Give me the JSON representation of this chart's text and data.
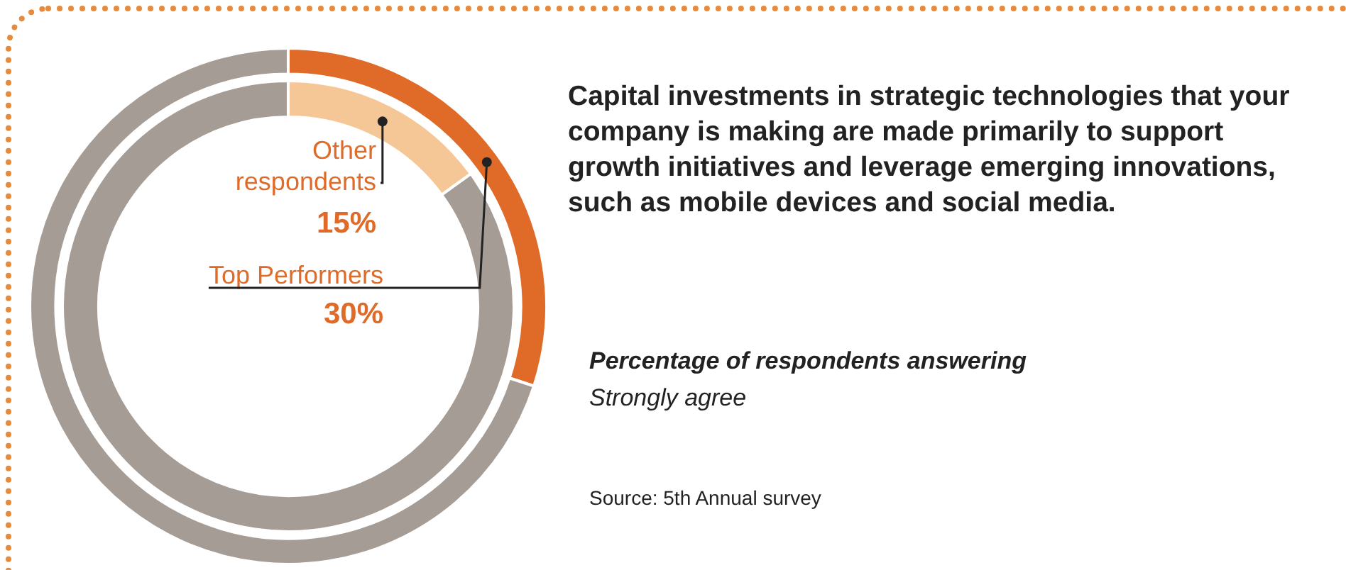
{
  "chart_data": [
    {
      "type": "donut",
      "title": "Capital investments in strategic technologies that your company is making are made primarily to support growth initiatives and leverage emerging innovations, such as mobile devices and social media.",
      "subtitle": "Percentage of respondents answering",
      "categories": [
        "Top Performers",
        null
      ],
      "values": [
        30,
        70
      ],
      "colors": [
        "#e06a27",
        "#a59d95"
      ],
      "value_labels": [
        "30%",
        null
      ],
      "annotations": [
        "Strongly agree",
        "Source: 5th Annual survey"
      ]
    },
    {
      "type": "donut",
      "categories": [
        "Other respondents",
        null
      ],
      "values": [
        15,
        85
      ],
      "colors": [
        "#f6c796",
        "#a59d95"
      ],
      "value_labels": [
        "15%",
        null
      ]
    }
  ]
}
